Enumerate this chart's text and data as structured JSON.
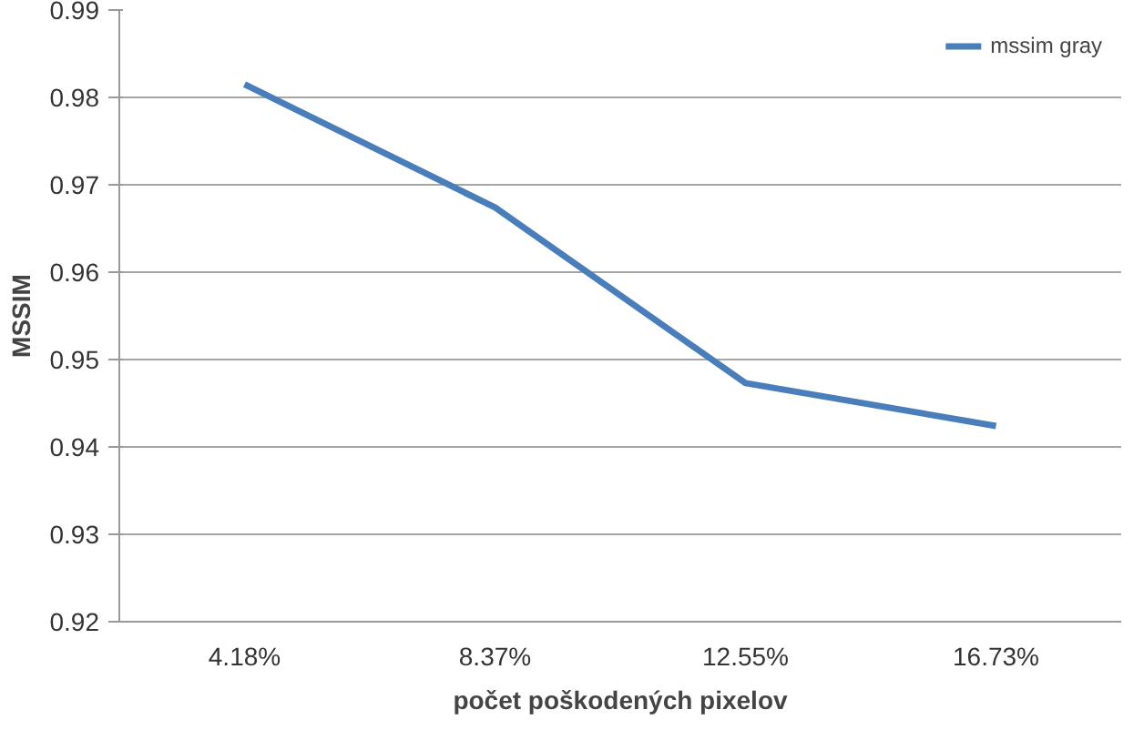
{
  "chart_data": {
    "type": "line",
    "xlabel": "počet poškodených pixelov",
    "ylabel": "MSSIM",
    "categories": [
      "4.18%",
      "8.37%",
      "12.55%",
      "16.73%"
    ],
    "series": [
      {
        "name": "mssim gray",
        "color": "#4a7ebb",
        "values": [
          0.9815,
          0.9674,
          0.9473,
          0.9424
        ]
      }
    ],
    "ylim": [
      0.92,
      0.99
    ],
    "yticks": [
      0.92,
      0.93,
      0.94,
      0.95,
      0.96,
      0.97,
      0.98,
      0.99
    ],
    "grid": "y",
    "legend": "top right",
    "marker": "none",
    "line_style": "solid"
  }
}
